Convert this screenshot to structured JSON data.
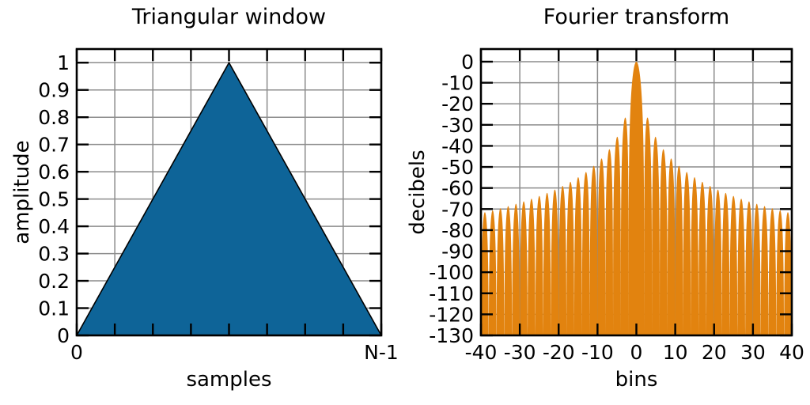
{
  "figure": {
    "background": "#ffffff",
    "text_color": "#000000",
    "grid_color": "#8c8c8c",
    "axis_color": "#000000"
  },
  "chart_data": [
    {
      "type": "area",
      "title": "Triangular window",
      "xlabel": "samples",
      "ylabel": "amplitude",
      "x_unit": "fraction of window length (0 to N-1)",
      "x": [
        0,
        0.5,
        1
      ],
      "y": [
        0,
        1,
        0
      ],
      "xlim": [
        0,
        1
      ],
      "ylim": [
        0,
        1.05
      ],
      "grid": true,
      "x_grid_divisions": 8,
      "xticks": [
        {
          "pos": 0,
          "label": "0"
        },
        {
          "pos": 1,
          "label": "N-1"
        }
      ],
      "yticks": [
        {
          "pos": 0,
          "label": "0"
        },
        {
          "pos": 0.1,
          "label": "0.1"
        },
        {
          "pos": 0.2,
          "label": "0.2"
        },
        {
          "pos": 0.3,
          "label": "0.3"
        },
        {
          "pos": 0.4,
          "label": "0.4"
        },
        {
          "pos": 0.5,
          "label": "0.5"
        },
        {
          "pos": 0.6,
          "label": "0.6"
        },
        {
          "pos": 0.7,
          "label": "0.7"
        },
        {
          "pos": 0.8,
          "label": "0.8"
        },
        {
          "pos": 0.9,
          "label": "0.9"
        },
        {
          "pos": 1,
          "label": "1"
        }
      ],
      "fill_color": "#0e6498",
      "outline_color": "#000000"
    },
    {
      "type": "area",
      "title": "Fourier transform",
      "xlabel": "bins",
      "ylabel": "decibels",
      "xlim": [
        -40,
        40
      ],
      "ylim": [
        -130,
        6
      ],
      "grid": true,
      "xticks": [
        {
          "pos": -40,
          "label": "-40"
        },
        {
          "pos": -30,
          "label": "-30"
        },
        {
          "pos": -20,
          "label": "-20"
        },
        {
          "pos": -10,
          "label": "-10"
        },
        {
          "pos": 0,
          "label": "0"
        },
        {
          "pos": 10,
          "label": "10"
        },
        {
          "pos": 20,
          "label": "20"
        },
        {
          "pos": 30,
          "label": "30"
        },
        {
          "pos": 40,
          "label": "40"
        }
      ],
      "yticks": [
        {
          "pos": 0,
          "label": "0"
        },
        {
          "pos": -10,
          "label": "-10"
        },
        {
          "pos": -20,
          "label": "-20"
        },
        {
          "pos": -30,
          "label": "-30"
        },
        {
          "pos": -40,
          "label": "-40"
        },
        {
          "pos": -50,
          "label": "-50"
        },
        {
          "pos": -60,
          "label": "-60"
        },
        {
          "pos": -70,
          "label": "-70"
        },
        {
          "pos": -80,
          "label": "-80"
        },
        {
          "pos": -90,
          "label": "-90"
        },
        {
          "pos": -100,
          "label": "-100"
        },
        {
          "pos": -110,
          "label": "-110"
        },
        {
          "pos": -120,
          "label": "-120"
        },
        {
          "pos": -130,
          "label": "-130"
        }
      ],
      "curve": {
        "formula_db": "40*log10(abs(sin(pi*f/2)/(pi*f/2)))",
        "sample_step_bins": 0.02,
        "peak": {
          "bin": 0,
          "db": 0
        },
        "null_spacing_bins": 2,
        "clip_db": -130,
        "symmetry": "even",
        "sidelobe_peaks_db": [
          {
            "bin": 3,
            "db": -26.9
          },
          {
            "bin": 5,
            "db": -35.8
          },
          {
            "bin": 7,
            "db": -41.7
          },
          {
            "bin": 9,
            "db": -46.0
          },
          {
            "bin": 11,
            "db": -49.5
          },
          {
            "bin": 13,
            "db": -52.4
          },
          {
            "bin": 15,
            "db": -54.9
          },
          {
            "bin": 17,
            "db": -57.1
          },
          {
            "bin": 19,
            "db": -59.0
          },
          {
            "bin": 21,
            "db": -60.8
          },
          {
            "bin": 23,
            "db": -62.3
          },
          {
            "bin": 25,
            "db": -63.8
          },
          {
            "bin": 27,
            "db": -65.1
          },
          {
            "bin": 29,
            "db": -66.3
          },
          {
            "bin": 31,
            "db": -67.5
          },
          {
            "bin": 33,
            "db": -68.6
          },
          {
            "bin": 35,
            "db": -69.6
          },
          {
            "bin": 37,
            "db": -70.6
          },
          {
            "bin": 39,
            "db": -71.5
          }
        ]
      },
      "fill_color": "#e2830f",
      "outline_color": "#e2830f"
    }
  ]
}
